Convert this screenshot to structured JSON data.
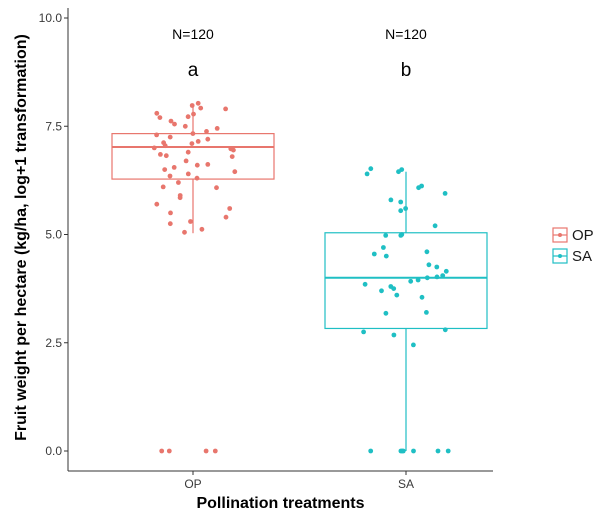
{
  "chart_data": {
    "type": "box",
    "xlabel": "Pollination treatments",
    "ylabel": "Fruit weight per hectare (kg/ha, log+1 transformation)",
    "categories": [
      "OP",
      "SA"
    ],
    "ylim": [
      0,
      10
    ],
    "yticks": [
      "0.0",
      "2.5",
      "5.0",
      "7.5",
      "10.0"
    ],
    "grid": false,
    "legend": {
      "position": "right",
      "entries": [
        "OP",
        "SA"
      ]
    },
    "colors": {
      "OP": "#e8766d",
      "SA": "#1fbfc4"
    },
    "annotations": [
      {
        "category": "OP",
        "n_label": "N=120",
        "letter": "a"
      },
      {
        "category": "SA",
        "n_label": "N=120",
        "letter": "b"
      }
    ],
    "boxes": [
      {
        "name": "OP",
        "whisker_low": 5.03,
        "q1": 6.28,
        "median": 7.02,
        "q3": 7.33,
        "whisker_high": 8.02
      },
      {
        "name": "SA",
        "whisker_low": 0.0,
        "q1": 2.83,
        "median": 4.0,
        "q3": 5.04,
        "whisker_high": 6.45
      }
    ],
    "points": [
      {
        "name": "OP",
        "values": [
          7.98,
          8.03,
          7.7,
          7.62,
          7.72,
          7.78,
          7.8,
          7.9,
          7.92,
          7.5,
          7.55,
          7.45,
          7.38,
          7.3,
          7.33,
          7.25,
          7.2,
          7.12,
          7.15,
          7.1,
          7.05,
          7.0,
          6.98,
          6.95,
          6.85,
          6.9,
          6.8,
          6.82,
          6.7,
          6.6,
          6.62,
          6.55,
          6.5,
          6.45,
          6.4,
          6.35,
          6.3,
          6.2,
          6.1,
          6.08,
          5.9,
          5.85,
          5.7,
          5.6,
          5.5,
          5.4,
          5.3,
          5.25,
          5.12,
          5.05,
          0.0,
          0.0,
          0.0,
          0.0
        ]
      },
      {
        "name": "SA",
        "values": [
          6.5,
          6.52,
          6.4,
          6.45,
          6.12,
          6.08,
          5.95,
          5.8,
          5.75,
          5.6,
          5.55,
          5.2,
          5.0,
          4.98,
          4.98,
          4.7,
          4.6,
          4.55,
          4.5,
          4.3,
          4.25,
          4.15,
          4.05,
          4.02,
          4.0,
          3.95,
          3.92,
          3.85,
          3.8,
          3.75,
          3.7,
          3.6,
          3.55,
          3.2,
          3.18,
          2.8,
          2.75,
          2.68,
          2.45,
          0.0,
          0.0,
          0.0,
          0.0,
          0.0,
          0.0,
          0.0
        ]
      }
    ]
  }
}
